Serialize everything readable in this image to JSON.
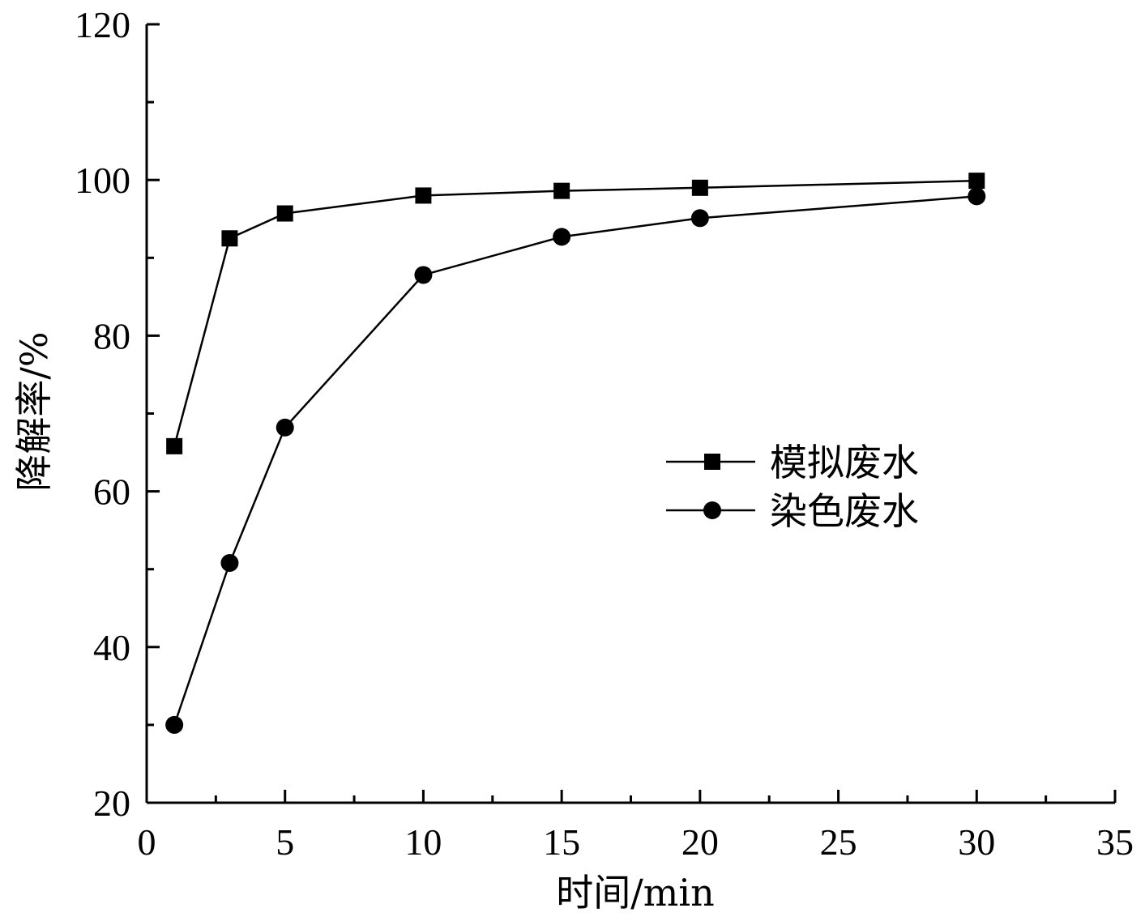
{
  "chart_data": {
    "type": "line",
    "title": "",
    "xlabel": "时间/min",
    "ylabel": "降解率/%",
    "xlim": [
      0,
      35
    ],
    "ylim": [
      20,
      120
    ],
    "xticks": [
      0,
      5,
      10,
      15,
      20,
      25,
      30,
      35
    ],
    "yticks": [
      20,
      40,
      60,
      80,
      100,
      120
    ],
    "grid": false,
    "legend_position": "right-middle",
    "series": [
      {
        "name": "模拟废水",
        "marker": "square",
        "color": "#000000",
        "x": [
          1,
          3,
          5,
          10,
          15,
          20,
          30
        ],
        "values": [
          65.8,
          92.5,
          95.7,
          98,
          98.6,
          99,
          99.9
        ]
      },
      {
        "name": "染色废水",
        "marker": "circle",
        "color": "#000000",
        "x": [
          1,
          3,
          5,
          10,
          15,
          20,
          30
        ],
        "values": [
          30,
          50.8,
          68.2,
          87.8,
          92.7,
          95.1,
          97.9
        ]
      }
    ]
  }
}
